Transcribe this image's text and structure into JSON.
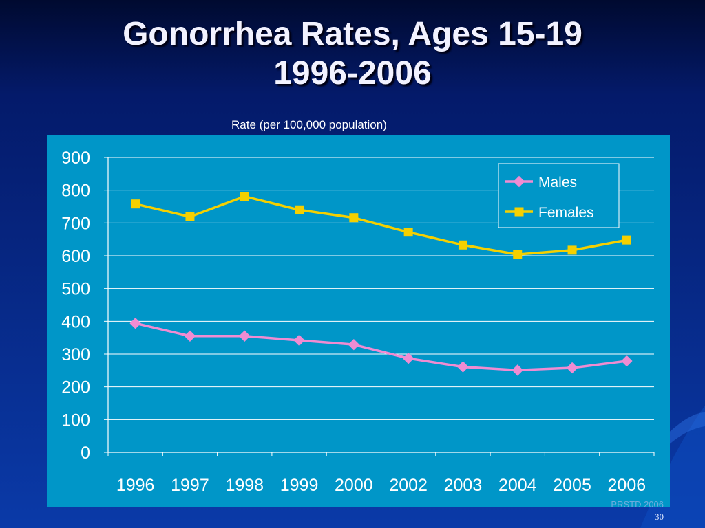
{
  "slide": {
    "title_line1": "Gonorrhea Rates, Ages 15-19",
    "title_line2": "1996-2006",
    "rate_label": "Rate (per 100,000 population)",
    "footer_source": "PRSTD 2006",
    "page_number": "30"
  },
  "chart_data": {
    "type": "line",
    "title": "",
    "xlabel": "",
    "ylabel": "Rate (per 100,000 population)",
    "ylim": [
      0,
      900
    ],
    "yticks": [
      0,
      100,
      200,
      300,
      400,
      500,
      600,
      700,
      800,
      900
    ],
    "grid": true,
    "legend_position": "top-right",
    "categories": [
      "1996",
      "1997",
      "1998",
      "1999",
      "2000",
      "2002",
      "2003",
      "2004",
      "2005",
      "2006"
    ],
    "series": [
      {
        "name": "Males",
        "marker": "diamond",
        "color": "#f08cd2",
        "values": [
          394,
          355,
          355,
          342,
          329,
          287,
          261,
          251,
          258,
          279
        ]
      },
      {
        "name": "Females",
        "marker": "square",
        "color": "#f5d000",
        "values": [
          758,
          719,
          781,
          740,
          716,
          672,
          633,
          604,
          617,
          648
        ]
      }
    ]
  }
}
